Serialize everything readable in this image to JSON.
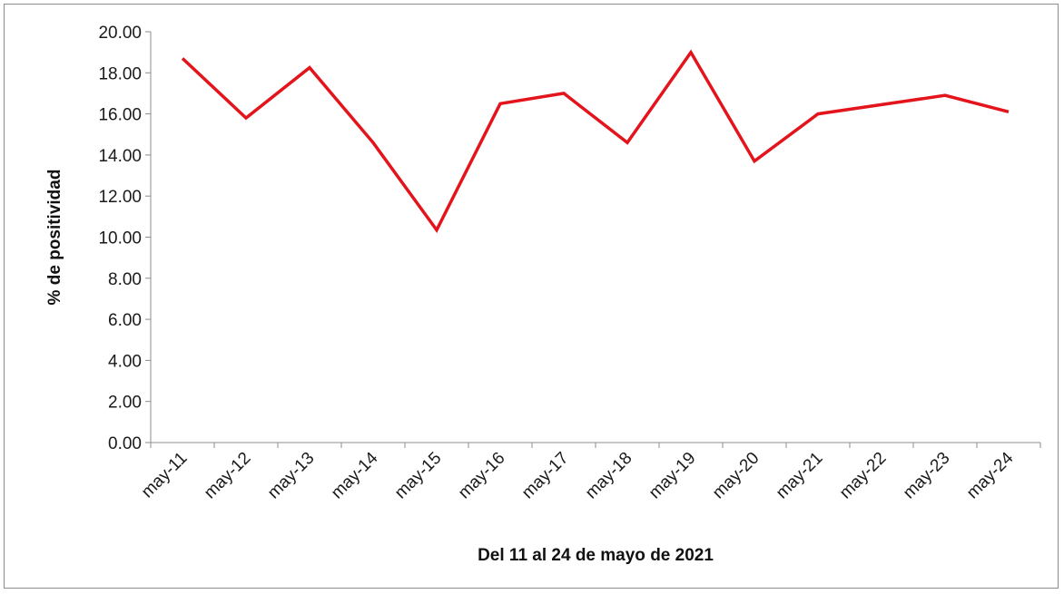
{
  "chart_data": {
    "type": "line",
    "title": "",
    "xlabel": "Del  11 al 24 de mayo de 2021",
    "ylabel": "% de positividad",
    "categories": [
      "may-11",
      "may-12",
      "may-13",
      "may-14",
      "may-15",
      "may-16",
      "may-17",
      "may-18",
      "may-19",
      "may-20",
      "may-21",
      "may-22",
      "may-23",
      "may-24"
    ],
    "series": [
      {
        "values": [
          18.7,
          15.8,
          18.25,
          14.6,
          10.35,
          16.5,
          17.0,
          14.6,
          19.0,
          13.7,
          16.0,
          16.45,
          16.9,
          16.1
        ],
        "color": "#e3141b"
      }
    ],
    "ylim": [
      0,
      20
    ],
    "yticks": [
      "0.00",
      "2.00",
      "4.00",
      "6.00",
      "8.00",
      "10.00",
      "12.00",
      "14.00",
      "16.00",
      "18.00",
      "20.00"
    ],
    "grid": false,
    "legend": "none"
  }
}
